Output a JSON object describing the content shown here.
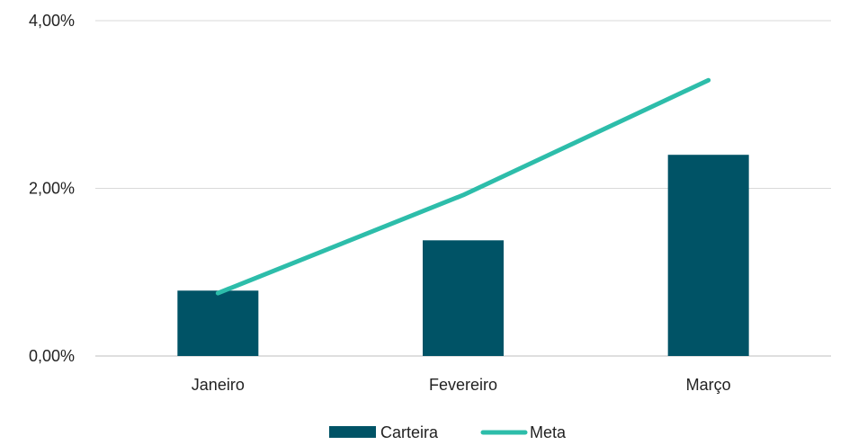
{
  "chart_data": {
    "type": "bar",
    "categories": [
      "Janeiro",
      "Fevereiro",
      "Março"
    ],
    "series": [
      {
        "name": "Carteira",
        "type": "bar",
        "color": "#005366",
        "values": [
          0.78,
          1.38,
          2.4
        ]
      },
      {
        "name": "Meta",
        "type": "line",
        "color": "#2dbdaa",
        "values": [
          0.75,
          1.92,
          3.29
        ]
      }
    ],
    "y_ticks": [
      "0,00%",
      "2,00%",
      "4,00%"
    ],
    "ylim": [
      0,
      4
    ],
    "grid": true,
    "legend_position": "bottom"
  }
}
